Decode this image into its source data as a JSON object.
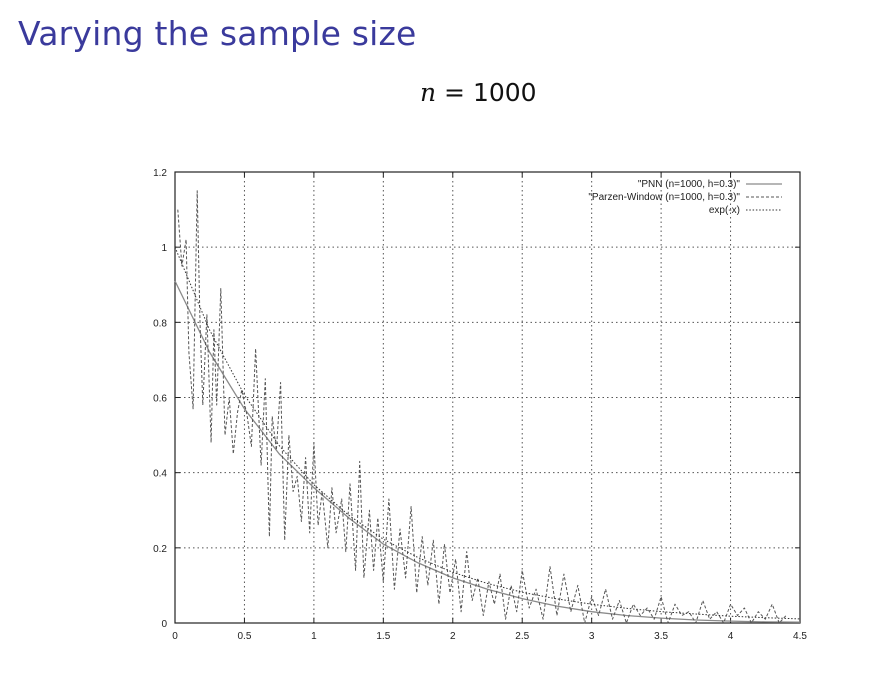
{
  "slide": {
    "title": "Varying the sample size",
    "subtitle_var": "n",
    "subtitle_rest": " = 1000"
  },
  "chart_data": {
    "type": "line",
    "title": "",
    "xlabel": "",
    "ylabel": "",
    "xlim": [
      0,
      4.5
    ],
    "ylim": [
      0,
      1.2
    ],
    "grid": true,
    "legend_position": "top-right",
    "x_ticks": [
      "0",
      "0.5",
      "1",
      "1.5",
      "2",
      "2.5",
      "3",
      "3.5",
      "4",
      "4.5"
    ],
    "y_ticks": [
      "0",
      "0.2",
      "0.4",
      "0.6",
      "0.8",
      "1",
      "1.2"
    ],
    "series": [
      {
        "name": "\"PNN (n=1000, h=0.3)\"",
        "style": "solid",
        "color": "#8a8a8a",
        "x": [
          0,
          0.25,
          0.5,
          0.75,
          1,
          1.25,
          1.5,
          1.75,
          2,
          2.25,
          2.5,
          2.75,
          3,
          3.25,
          3.5,
          3.75,
          4,
          4.25,
          4.5
        ],
        "y": [
          0.91,
          0.72,
          0.57,
          0.45,
          0.36,
          0.28,
          0.21,
          0.16,
          0.12,
          0.09,
          0.065,
          0.045,
          0.03,
          0.02,
          0.013,
          0.008,
          0.005,
          0.003,
          0.002
        ]
      },
      {
        "name": "\"Parzen-Window (n=1000, h=0.3)\"",
        "style": "dashed",
        "color": "#555555",
        "x": [
          0.02,
          0.05,
          0.08,
          0.1,
          0.13,
          0.16,
          0.18,
          0.2,
          0.23,
          0.26,
          0.28,
          0.3,
          0.33,
          0.36,
          0.39,
          0.42,
          0.45,
          0.48,
          0.52,
          0.55,
          0.58,
          0.62,
          0.65,
          0.68,
          0.7,
          0.73,
          0.76,
          0.79,
          0.82,
          0.85,
          0.88,
          0.91,
          0.94,
          0.97,
          1.0,
          1.03,
          1.06,
          1.1,
          1.13,
          1.16,
          1.2,
          1.23,
          1.26,
          1.3,
          1.33,
          1.36,
          1.4,
          1.43,
          1.46,
          1.5,
          1.54,
          1.58,
          1.62,
          1.66,
          1.7,
          1.74,
          1.78,
          1.82,
          1.86,
          1.9,
          1.94,
          1.98,
          2.02,
          2.06,
          2.1,
          2.14,
          2.18,
          2.22,
          2.26,
          2.3,
          2.34,
          2.38,
          2.42,
          2.46,
          2.5,
          2.55,
          2.6,
          2.65,
          2.7,
          2.75,
          2.8,
          2.85,
          2.9,
          2.95,
          3.0,
          3.05,
          3.1,
          3.15,
          3.2,
          3.25,
          3.3,
          3.35,
          3.4,
          3.45,
          3.5,
          3.55,
          3.6,
          3.65,
          3.7,
          3.75,
          3.8,
          3.85,
          3.9,
          3.95,
          4.0,
          4.05,
          4.1,
          4.15,
          4.2,
          4.25,
          4.3,
          4.35,
          4.4
        ],
        "y": [
          1.1,
          0.95,
          1.02,
          0.72,
          0.57,
          1.15,
          0.8,
          0.58,
          0.82,
          0.48,
          0.78,
          0.58,
          0.89,
          0.5,
          0.6,
          0.45,
          0.56,
          0.62,
          0.55,
          0.47,
          0.73,
          0.42,
          0.65,
          0.23,
          0.55,
          0.46,
          0.64,
          0.22,
          0.5,
          0.35,
          0.39,
          0.27,
          0.44,
          0.24,
          0.48,
          0.26,
          0.35,
          0.2,
          0.36,
          0.24,
          0.33,
          0.19,
          0.37,
          0.14,
          0.43,
          0.12,
          0.3,
          0.14,
          0.28,
          0.11,
          0.33,
          0.09,
          0.25,
          0.12,
          0.31,
          0.08,
          0.23,
          0.1,
          0.22,
          0.05,
          0.21,
          0.08,
          0.17,
          0.03,
          0.19,
          0.06,
          0.12,
          0.02,
          0.11,
          0.05,
          0.13,
          0.01,
          0.1,
          0.03,
          0.14,
          0.04,
          0.09,
          0.01,
          0.15,
          0.02,
          0.13,
          0.03,
          0.1,
          0.0,
          0.07,
          0.02,
          0.09,
          0.01,
          0.06,
          0.0,
          0.05,
          0.02,
          0.04,
          0.01,
          0.07,
          0.0,
          0.05,
          0.02,
          0.03,
          0.0,
          0.06,
          0.01,
          0.03,
          0.0,
          0.05,
          0.02,
          0.04,
          0.0,
          0.03,
          0.01,
          0.05,
          0.0,
          0.02
        ]
      },
      {
        "name": "exp(-x)",
        "style": "dotted",
        "color": "#333333",
        "x": [
          0,
          0.25,
          0.5,
          0.75,
          1,
          1.25,
          1.5,
          1.75,
          2,
          2.25,
          2.5,
          2.75,
          3,
          3.25,
          3.5,
          3.75,
          4,
          4.25,
          4.5
        ],
        "y": [
          1.0,
          0.779,
          0.607,
          0.472,
          0.368,
          0.287,
          0.223,
          0.174,
          0.135,
          0.105,
          0.082,
          0.064,
          0.05,
          0.039,
          0.03,
          0.024,
          0.018,
          0.014,
          0.011
        ]
      }
    ]
  }
}
